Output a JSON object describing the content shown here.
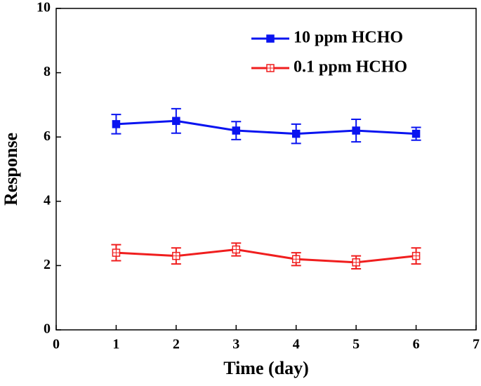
{
  "chart_data": {
    "type": "line",
    "x_label": "Time (day)",
    "y_label": "Response",
    "x": [
      1,
      2,
      3,
      4,
      5,
      6
    ],
    "series": [
      {
        "name": "10 ppm HCHO",
        "color": "#0a14f0",
        "marker": "filled-square",
        "values": [
          6.4,
          6.5,
          6.2,
          6.1,
          6.2,
          6.1
        ],
        "errors": [
          0.3,
          0.38,
          0.28,
          0.3,
          0.35,
          0.2
        ]
      },
      {
        "name": "0.1 ppm HCHO",
        "color": "#f01e1e",
        "marker": "open-square",
        "values": [
          2.4,
          2.3,
          2.5,
          2.2,
          2.1,
          2.3
        ],
        "errors": [
          0.25,
          0.25,
          0.2,
          0.2,
          0.2,
          0.25
        ]
      }
    ],
    "xlim": [
      0,
      7
    ],
    "ylim": [
      0,
      10
    ],
    "xticks": [
      0,
      1,
      2,
      3,
      4,
      5,
      6,
      7
    ],
    "yticks": [
      0,
      2,
      4,
      6,
      8,
      10
    ],
    "legend": "upper right",
    "grid": false
  }
}
